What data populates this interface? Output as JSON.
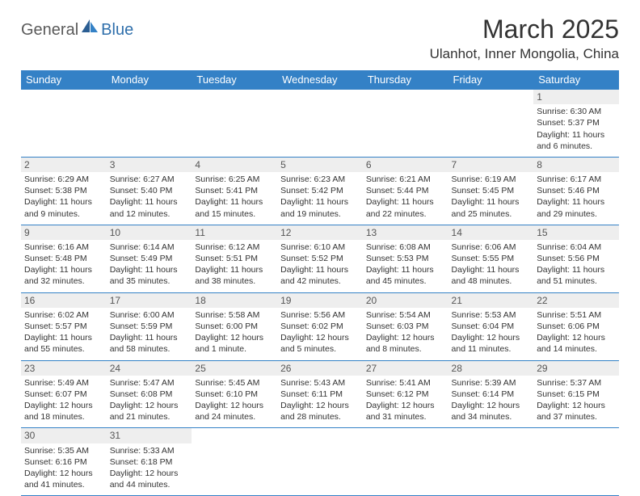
{
  "brand": {
    "part1": "General",
    "part2": "Blue"
  },
  "title": "March 2025",
  "location": "Ulanhot, Inner Mongolia, China",
  "colors": {
    "header_bg": "#3481c6",
    "header_fg": "#ffffff",
    "grid_line": "#3481c6",
    "daynum_bg": "#eeeeee",
    "text": "#333333"
  },
  "weekdays": [
    "Sunday",
    "Monday",
    "Tuesday",
    "Wednesday",
    "Thursday",
    "Friday",
    "Saturday"
  ],
  "weeks": [
    [
      null,
      null,
      null,
      null,
      null,
      null,
      {
        "n": "1",
        "sr": "Sunrise: 6:30 AM",
        "ss": "Sunset: 5:37 PM",
        "dl1": "Daylight: 11 hours",
        "dl2": "and 6 minutes."
      }
    ],
    [
      {
        "n": "2",
        "sr": "Sunrise: 6:29 AM",
        "ss": "Sunset: 5:38 PM",
        "dl1": "Daylight: 11 hours",
        "dl2": "and 9 minutes."
      },
      {
        "n": "3",
        "sr": "Sunrise: 6:27 AM",
        "ss": "Sunset: 5:40 PM",
        "dl1": "Daylight: 11 hours",
        "dl2": "and 12 minutes."
      },
      {
        "n": "4",
        "sr": "Sunrise: 6:25 AM",
        "ss": "Sunset: 5:41 PM",
        "dl1": "Daylight: 11 hours",
        "dl2": "and 15 minutes."
      },
      {
        "n": "5",
        "sr": "Sunrise: 6:23 AM",
        "ss": "Sunset: 5:42 PM",
        "dl1": "Daylight: 11 hours",
        "dl2": "and 19 minutes."
      },
      {
        "n": "6",
        "sr": "Sunrise: 6:21 AM",
        "ss": "Sunset: 5:44 PM",
        "dl1": "Daylight: 11 hours",
        "dl2": "and 22 minutes."
      },
      {
        "n": "7",
        "sr": "Sunrise: 6:19 AM",
        "ss": "Sunset: 5:45 PM",
        "dl1": "Daylight: 11 hours",
        "dl2": "and 25 minutes."
      },
      {
        "n": "8",
        "sr": "Sunrise: 6:17 AM",
        "ss": "Sunset: 5:46 PM",
        "dl1": "Daylight: 11 hours",
        "dl2": "and 29 minutes."
      }
    ],
    [
      {
        "n": "9",
        "sr": "Sunrise: 6:16 AM",
        "ss": "Sunset: 5:48 PM",
        "dl1": "Daylight: 11 hours",
        "dl2": "and 32 minutes."
      },
      {
        "n": "10",
        "sr": "Sunrise: 6:14 AM",
        "ss": "Sunset: 5:49 PM",
        "dl1": "Daylight: 11 hours",
        "dl2": "and 35 minutes."
      },
      {
        "n": "11",
        "sr": "Sunrise: 6:12 AM",
        "ss": "Sunset: 5:51 PM",
        "dl1": "Daylight: 11 hours",
        "dl2": "and 38 minutes."
      },
      {
        "n": "12",
        "sr": "Sunrise: 6:10 AM",
        "ss": "Sunset: 5:52 PM",
        "dl1": "Daylight: 11 hours",
        "dl2": "and 42 minutes."
      },
      {
        "n": "13",
        "sr": "Sunrise: 6:08 AM",
        "ss": "Sunset: 5:53 PM",
        "dl1": "Daylight: 11 hours",
        "dl2": "and 45 minutes."
      },
      {
        "n": "14",
        "sr": "Sunrise: 6:06 AM",
        "ss": "Sunset: 5:55 PM",
        "dl1": "Daylight: 11 hours",
        "dl2": "and 48 minutes."
      },
      {
        "n": "15",
        "sr": "Sunrise: 6:04 AM",
        "ss": "Sunset: 5:56 PM",
        "dl1": "Daylight: 11 hours",
        "dl2": "and 51 minutes."
      }
    ],
    [
      {
        "n": "16",
        "sr": "Sunrise: 6:02 AM",
        "ss": "Sunset: 5:57 PM",
        "dl1": "Daylight: 11 hours",
        "dl2": "and 55 minutes."
      },
      {
        "n": "17",
        "sr": "Sunrise: 6:00 AM",
        "ss": "Sunset: 5:59 PM",
        "dl1": "Daylight: 11 hours",
        "dl2": "and 58 minutes."
      },
      {
        "n": "18",
        "sr": "Sunrise: 5:58 AM",
        "ss": "Sunset: 6:00 PM",
        "dl1": "Daylight: 12 hours",
        "dl2": "and 1 minute."
      },
      {
        "n": "19",
        "sr": "Sunrise: 5:56 AM",
        "ss": "Sunset: 6:02 PM",
        "dl1": "Daylight: 12 hours",
        "dl2": "and 5 minutes."
      },
      {
        "n": "20",
        "sr": "Sunrise: 5:54 AM",
        "ss": "Sunset: 6:03 PM",
        "dl1": "Daylight: 12 hours",
        "dl2": "and 8 minutes."
      },
      {
        "n": "21",
        "sr": "Sunrise: 5:53 AM",
        "ss": "Sunset: 6:04 PM",
        "dl1": "Daylight: 12 hours",
        "dl2": "and 11 minutes."
      },
      {
        "n": "22",
        "sr": "Sunrise: 5:51 AM",
        "ss": "Sunset: 6:06 PM",
        "dl1": "Daylight: 12 hours",
        "dl2": "and 14 minutes."
      }
    ],
    [
      {
        "n": "23",
        "sr": "Sunrise: 5:49 AM",
        "ss": "Sunset: 6:07 PM",
        "dl1": "Daylight: 12 hours",
        "dl2": "and 18 minutes."
      },
      {
        "n": "24",
        "sr": "Sunrise: 5:47 AM",
        "ss": "Sunset: 6:08 PM",
        "dl1": "Daylight: 12 hours",
        "dl2": "and 21 minutes."
      },
      {
        "n": "25",
        "sr": "Sunrise: 5:45 AM",
        "ss": "Sunset: 6:10 PM",
        "dl1": "Daylight: 12 hours",
        "dl2": "and 24 minutes."
      },
      {
        "n": "26",
        "sr": "Sunrise: 5:43 AM",
        "ss": "Sunset: 6:11 PM",
        "dl1": "Daylight: 12 hours",
        "dl2": "and 28 minutes."
      },
      {
        "n": "27",
        "sr": "Sunrise: 5:41 AM",
        "ss": "Sunset: 6:12 PM",
        "dl1": "Daylight: 12 hours",
        "dl2": "and 31 minutes."
      },
      {
        "n": "28",
        "sr": "Sunrise: 5:39 AM",
        "ss": "Sunset: 6:14 PM",
        "dl1": "Daylight: 12 hours",
        "dl2": "and 34 minutes."
      },
      {
        "n": "29",
        "sr": "Sunrise: 5:37 AM",
        "ss": "Sunset: 6:15 PM",
        "dl1": "Daylight: 12 hours",
        "dl2": "and 37 minutes."
      }
    ],
    [
      {
        "n": "30",
        "sr": "Sunrise: 5:35 AM",
        "ss": "Sunset: 6:16 PM",
        "dl1": "Daylight: 12 hours",
        "dl2": "and 41 minutes."
      },
      {
        "n": "31",
        "sr": "Sunrise: 5:33 AM",
        "ss": "Sunset: 6:18 PM",
        "dl1": "Daylight: 12 hours",
        "dl2": "and 44 minutes."
      },
      null,
      null,
      null,
      null,
      null
    ]
  ]
}
